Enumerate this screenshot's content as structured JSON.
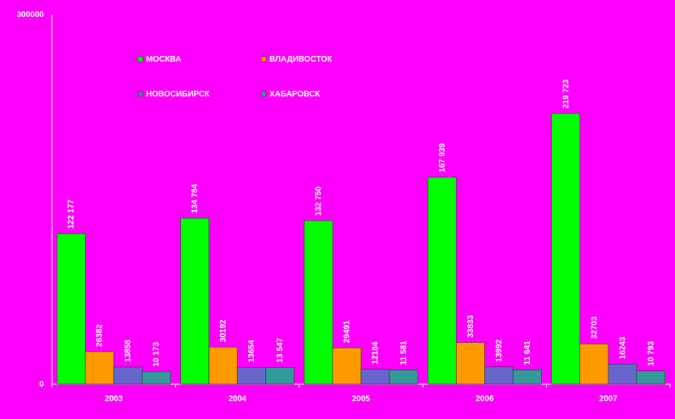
{
  "chart_data": {
    "type": "bar",
    "title": "",
    "xlabel": "",
    "ylabel": "",
    "ylim": [
      0,
      300000
    ],
    "y_ticks": [
      "0",
      "300000"
    ],
    "grid": false,
    "legend_placement": "top-left",
    "categories": [
      "2003",
      "2004",
      "2005",
      "2006",
      "2007"
    ],
    "series": [
      {
        "name": "МОСКВА",
        "color": "#00ff00",
        "values": [
          122177,
          134784,
          132750,
          167939,
          219723
        ],
        "labels": [
          "122 177",
          "134 784",
          "132 750",
          "167 939",
          "219 723"
        ]
      },
      {
        "name": "ВЛАДИВОСТОК",
        "color": "#ff9900",
        "values": [
          26382,
          30192,
          29491,
          33833,
          32703
        ],
        "labels": [
          "26382",
          "30192",
          "29491",
          "33833",
          "32703"
        ]
      },
      {
        "name": "НОВОСИБИРСК",
        "color": "#6666cc",
        "values": [
          13858,
          13654,
          12184,
          13992,
          16243
        ],
        "labels": [
          "13858",
          "13654",
          "12184",
          "13992",
          "16243"
        ]
      },
      {
        "name": "ХАБАРОВСК",
        "color": "#339999",
        "values": [
          10173,
          13547,
          11581,
          11641,
          10793
        ],
        "labels": [
          "10 173",
          "13 547",
          "11 581",
          "11 641",
          "10 793"
        ]
      }
    ]
  }
}
